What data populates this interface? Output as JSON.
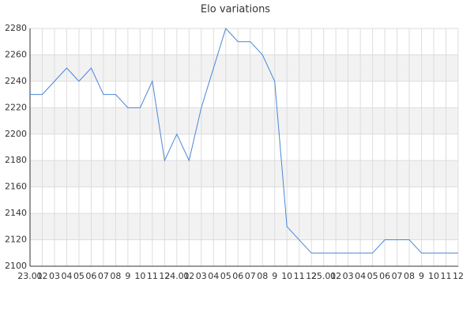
{
  "chart_data": {
    "type": "line",
    "title": "Elo variations",
    "categories": [
      "23.01",
      "02",
      "03",
      "04",
      "05",
      "06",
      "07",
      "08",
      "9",
      "10",
      "11",
      "12",
      "24.01",
      "02",
      "03",
      "04",
      "05",
      "06",
      "07",
      "08",
      "9",
      "10",
      "11",
      "12",
      "25.01",
      "02",
      "03",
      "04",
      "05",
      "06",
      "07",
      "08",
      "9",
      "10",
      "11",
      "12"
    ],
    "series": [
      {
        "name": "Elo",
        "color": "#4a86d8",
        "values": [
          2230,
          2230,
          2240,
          2250,
          2240,
          2250,
          2230,
          2230,
          2220,
          2220,
          2240,
          2180,
          2200,
          2180,
          2220,
          2250,
          2280,
          2270,
          2270,
          2260,
          2240,
          2130,
          2120,
          2110,
          2110,
          2110,
          2110,
          2110,
          2110,
          2120,
          2120,
          2120,
          2110,
          2110,
          2110,
          2110
        ]
      }
    ],
    "ylim": [
      2100,
      2280
    ],
    "yticks": [
      2100,
      2120,
      2140,
      2160,
      2180,
      2200,
      2220,
      2240,
      2260,
      2280
    ],
    "grid": true,
    "band_color": "#f2f2f2"
  }
}
